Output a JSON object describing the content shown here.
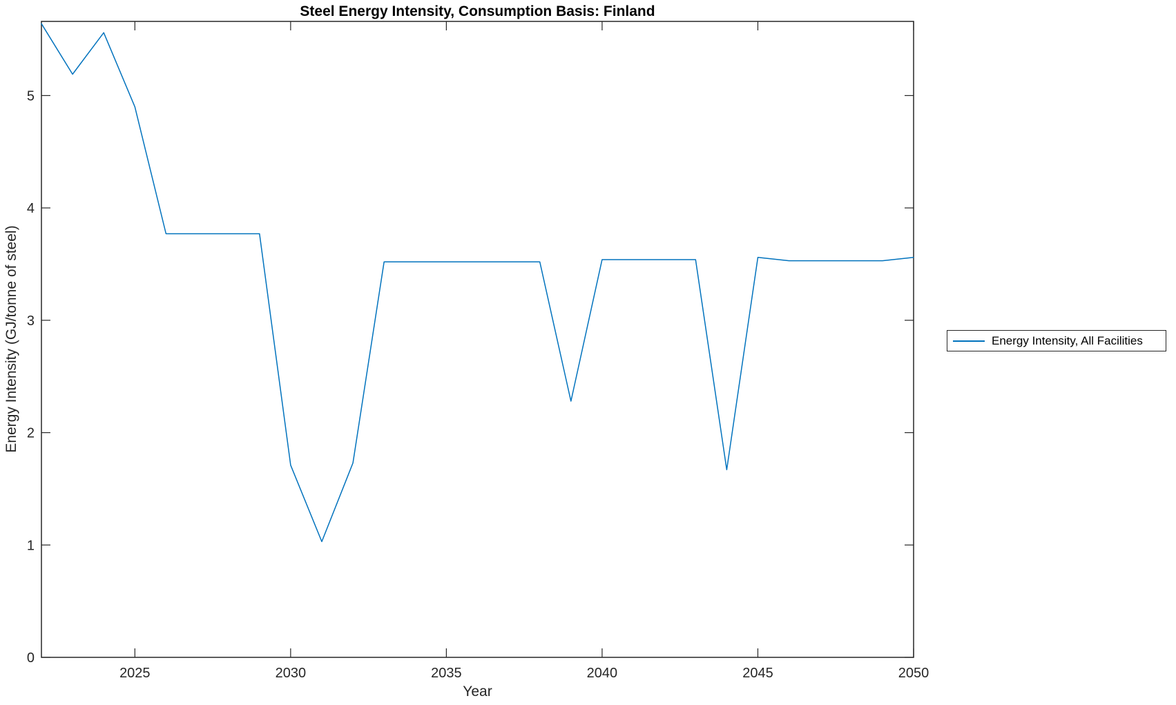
{
  "chart_data": {
    "type": "line",
    "title": "Steel Energy Intensity, Consumption Basis: Finland",
    "xlabel": "Year",
    "ylabel": "Energy Intensity (GJ/tonne of steel)",
    "xlim": [
      2022,
      2050
    ],
    "ylim": [
      0,
      5.66
    ],
    "xticks": [
      2025,
      2030,
      2035,
      2040,
      2045,
      2050
    ],
    "yticks": [
      0,
      1,
      2,
      3,
      4,
      5
    ],
    "grid": false,
    "box": true,
    "line_color": "#0072BD",
    "axis_color": "#262626",
    "legend": {
      "position": "outside-right",
      "entries": [
        "Energy Intensity, All Facilities"
      ]
    },
    "series": [
      {
        "name": "Energy Intensity, All Facilities",
        "x": [
          2022,
          2023,
          2024,
          2025,
          2026,
          2027,
          2028,
          2029,
          2030,
          2031,
          2032,
          2033,
          2034,
          2035,
          2036,
          2037,
          2038,
          2039,
          2040,
          2041,
          2042,
          2043,
          2044,
          2045,
          2046,
          2047,
          2048,
          2049,
          2050
        ],
        "y": [
          5.64,
          5.19,
          5.56,
          4.9,
          3.77,
          3.77,
          3.77,
          3.77,
          1.71,
          1.03,
          1.73,
          3.52,
          3.52,
          3.52,
          3.52,
          3.52,
          3.52,
          2.28,
          3.54,
          3.54,
          3.54,
          3.54,
          1.67,
          3.56,
          3.53,
          3.53,
          3.53,
          3.53,
          3.56
        ]
      }
    ]
  }
}
